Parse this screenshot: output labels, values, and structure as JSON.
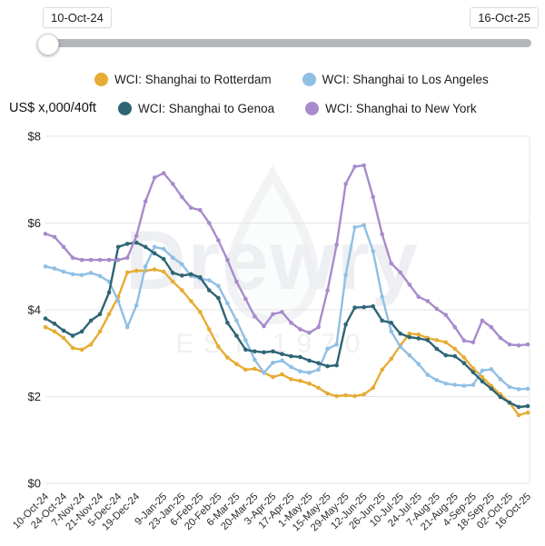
{
  "range_slider": {
    "start_label": "10-Oct-24",
    "end_label": "16-Oct-25"
  },
  "y_axis_title": "US$ x,000/40ft",
  "watermark": {
    "text": "Drewry",
    "subtext": "EST 1970"
  },
  "legend": {
    "items": [
      {
        "label": "WCI: Shanghai to Rotterdam",
        "color": "#E7AC34"
      },
      {
        "label": "WCI: Shanghai to Los Angeles",
        "color": "#90BFE4"
      },
      {
        "label": "WCI: Shanghai to Genoa",
        "color": "#2E6575"
      },
      {
        "label": "WCI: Shanghai to New York",
        "color": "#A78BCB"
      }
    ]
  },
  "chart_data": {
    "type": "line",
    "title": "",
    "ylabel": "US$ x,000/40ft",
    "ylim": [
      0,
      8
    ],
    "grid": true,
    "legend_position": "top",
    "y_axis": {
      "tick_labels": [
        "$0",
        "$2",
        "$4",
        "$6",
        "$8"
      ],
      "tick_values": [
        0,
        2,
        4,
        6,
        8
      ]
    },
    "n_points": 54,
    "x_tick_labels": [
      "10-Oct-24",
      "24-Oct-24",
      "7-Nov-24",
      "21-Nov-24",
      "5-Dec-24",
      "19-Dec-24",
      "9-Jan-25",
      "23-Jan-25",
      "6-Feb-25",
      "20-Feb-25",
      "6-Mar-25",
      "20-Mar-25",
      "3-Apr-25",
      "17-Apr-25",
      "1-May-25",
      "15-May-25",
      "29-May-25",
      "12-Jun-25",
      "26-Jun-25",
      "10-Jul-25",
      "24-Jul-25",
      "7-Aug-25",
      "21-Aug-25",
      "4-Sep-25",
      "18-Sep-25",
      "02-Oct-25",
      "16-Oct-25"
    ],
    "x_tick_indices": [
      0,
      2,
      4,
      6,
      8,
      10,
      13,
      15,
      17,
      19,
      21,
      23,
      25,
      27,
      29,
      31,
      33,
      35,
      37,
      39,
      41,
      43,
      45,
      47,
      49,
      51,
      53
    ],
    "series": [
      {
        "name": "WCI: Shanghai to Rotterdam",
        "color": "#E7AC34",
        "values": [
          3.6,
          3.5,
          3.35,
          3.12,
          3.08,
          3.2,
          3.5,
          3.9,
          4.3,
          4.86,
          4.9,
          4.9,
          4.93,
          4.88,
          4.65,
          4.45,
          4.2,
          3.95,
          3.55,
          3.15,
          2.9,
          2.75,
          2.62,
          2.64,
          2.55,
          2.45,
          2.51,
          2.4,
          2.36,
          2.3,
          2.2,
          2.07,
          2.01,
          2.03,
          2.01,
          2.05,
          2.2,
          2.62,
          2.87,
          3.18,
          3.45,
          3.43,
          3.35,
          3.3,
          3.25,
          3.1,
          2.9,
          2.65,
          2.45,
          2.24,
          2.05,
          1.86,
          1.57,
          1.63
        ]
      },
      {
        "name": "WCI: Shanghai to Los Angeles",
        "color": "#90BFE4",
        "values": [
          5.0,
          4.95,
          4.88,
          4.82,
          4.8,
          4.85,
          4.78,
          4.65,
          4.2,
          3.6,
          4.1,
          5.0,
          5.45,
          5.4,
          5.2,
          5.05,
          4.78,
          4.72,
          4.68,
          4.55,
          4.15,
          3.75,
          3.3,
          2.85,
          2.55,
          2.78,
          2.83,
          2.68,
          2.58,
          2.55,
          2.62,
          3.1,
          3.2,
          4.8,
          5.9,
          5.95,
          5.35,
          4.3,
          3.5,
          3.15,
          2.95,
          2.75,
          2.5,
          2.38,
          2.3,
          2.27,
          2.25,
          2.27,
          2.6,
          2.63,
          2.4,
          2.22,
          2.17,
          2.18
        ]
      },
      {
        "name": "WCI: Shanghai to Genoa",
        "color": "#2E6575",
        "values": [
          3.8,
          3.68,
          3.52,
          3.4,
          3.5,
          3.75,
          3.9,
          4.4,
          5.45,
          5.52,
          5.55,
          5.45,
          5.3,
          5.17,
          4.85,
          4.79,
          4.82,
          4.75,
          4.45,
          4.27,
          3.7,
          3.4,
          3.08,
          3.04,
          3.02,
          3.04,
          2.98,
          2.93,
          2.91,
          2.83,
          2.77,
          2.7,
          2.72,
          3.66,
          4.05,
          4.06,
          4.08,
          3.75,
          3.7,
          3.45,
          3.37,
          3.34,
          3.3,
          3.1,
          2.95,
          2.93,
          2.77,
          2.56,
          2.35,
          2.18,
          1.99,
          1.86,
          1.76,
          1.78
        ]
      },
      {
        "name": "WCI: Shanghai to New York",
        "color": "#A78BCB",
        "values": [
          5.75,
          5.68,
          5.45,
          5.2,
          5.15,
          5.15,
          5.15,
          5.15,
          5.15,
          5.2,
          5.7,
          6.5,
          7.05,
          7.15,
          6.9,
          6.6,
          6.35,
          6.3,
          6.0,
          5.6,
          5.15,
          4.65,
          4.25,
          3.85,
          3.62,
          3.9,
          3.95,
          3.7,
          3.55,
          3.47,
          3.6,
          4.45,
          5.5,
          6.9,
          7.3,
          7.33,
          6.6,
          5.74,
          5.07,
          4.86,
          4.58,
          4.3,
          4.2,
          4.02,
          3.88,
          3.6,
          3.29,
          3.25,
          3.75,
          3.6,
          3.35,
          3.2,
          3.18,
          3.2
        ]
      }
    ]
  }
}
